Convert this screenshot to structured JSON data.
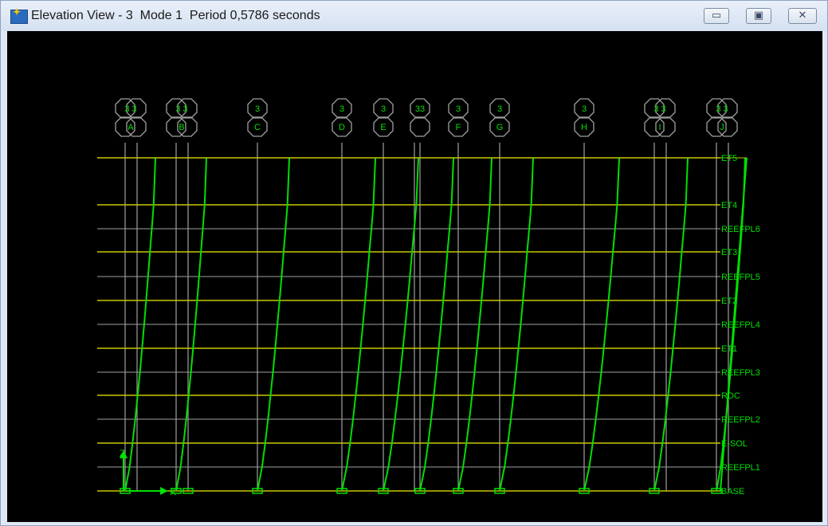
{
  "window": {
    "title": "Elevation View - 3  Mode 1  Period 0,5786 seconds",
    "icon": "app-icon",
    "controls": [
      {
        "name": "minimize-button",
        "glyph": "▭"
      },
      {
        "name": "maximize-button",
        "glyph": "▣"
      },
      {
        "name": "close-button",
        "glyph": "✕"
      }
    ]
  },
  "colors": {
    "background": "#000000",
    "grid": "#a0a0a0",
    "story_lines": "#c8c800",
    "mode_shape": "#00e000",
    "labels": "#00e000",
    "bubble": "#a0a0a0"
  },
  "axes": {
    "x": "X",
    "z": "Z"
  },
  "grid_bubbles": [
    {
      "top": "3 3",
      "bottom": "A"
    },
    {
      "top": "3 3",
      "bottom": "B"
    },
    {
      "top": "3",
      "bottom": "C"
    },
    {
      "top": "3",
      "bottom": "D"
    },
    {
      "top": "3",
      "bottom": "E"
    },
    {
      "top": "33",
      "bottom": ""
    },
    {
      "top": "3",
      "bottom": "F"
    },
    {
      "top": "3",
      "bottom": "G"
    },
    {
      "top": "3",
      "bottom": "H"
    },
    {
      "top": "3 3",
      "bottom": "I"
    },
    {
      "top": "3 3",
      "bottom": "J"
    }
  ],
  "story_levels": [
    "ET5",
    "ET4",
    "REEFPL6",
    "ET3",
    "REEFPL5",
    "ET2",
    "REEFPL4",
    "ET1",
    "REEFPL3",
    "RDC",
    "REEFPL2",
    "E-SOL",
    "REEFPL1",
    "BASE"
  ]
}
